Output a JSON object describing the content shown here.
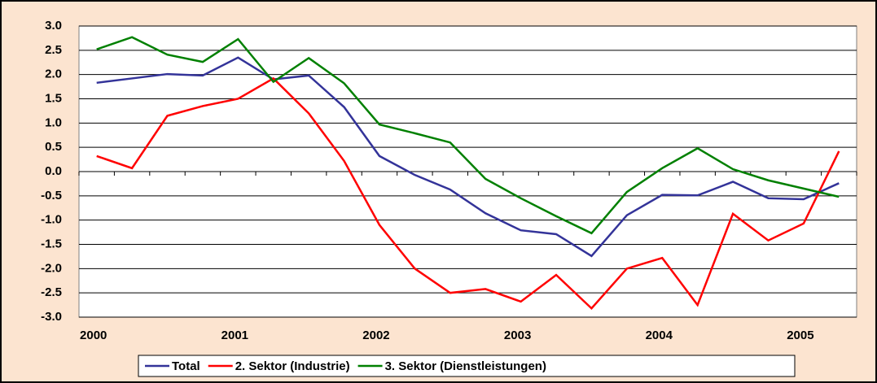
{
  "chart_data": {
    "type": "line",
    "categories": [
      "2000",
      null,
      null,
      null,
      "2001",
      null,
      null,
      null,
      "2002",
      null,
      null,
      null,
      "2003",
      null,
      null,
      null,
      "2004",
      null,
      null,
      null,
      "2005",
      null
    ],
    "series": [
      {
        "name": "Total",
        "color": "#333399",
        "values": [
          1.83,
          1.92,
          2.01,
          1.98,
          2.35,
          1.9,
          1.98,
          1.33,
          0.32,
          -0.07,
          -0.37,
          -0.86,
          -1.21,
          -1.29,
          -1.74,
          -0.9,
          -0.48,
          -0.49,
          -0.21,
          -0.55,
          -0.57,
          -0.24
        ]
      },
      {
        "name": "2. Sektor (Industrie)",
        "color": "#ff0000",
        "values": [
          0.32,
          0.07,
          1.15,
          1.35,
          1.5,
          1.92,
          1.2,
          0.22,
          -1.1,
          -2.0,
          -2.5,
          -2.42,
          -2.68,
          -2.13,
          -2.82,
          -2.0,
          -1.78,
          -2.75,
          -0.87,
          -1.42,
          -1.07,
          0.42
        ]
      },
      {
        "name": "3. Sektor (Dienstleistungen)",
        "color": "#008000",
        "values": [
          2.52,
          2.77,
          2.41,
          2.26,
          2.73,
          1.85,
          2.34,
          1.82,
          0.97,
          0.79,
          0.6,
          -0.15,
          -0.55,
          -0.92,
          -1.27,
          -0.42,
          0.07,
          0.48,
          0.05,
          -0.18,
          -0.35,
          -0.52
        ]
      }
    ],
    "ylim": [
      -3,
      3
    ],
    "yticks": [
      {
        "value": 3,
        "label": "3.0"
      },
      2.5,
      {
        "value": 2,
        "label": "2.0"
      },
      1.5,
      {
        "value": 1,
        "label": "1.0"
      },
      0.5,
      {
        "value": 0,
        "label": "0.0"
      },
      -0.5,
      {
        "value": -1,
        "label": "-1.0"
      },
      -1.5,
      {
        "value": -2,
        "label": "-2.0"
      },
      -2.5,
      {
        "value": -3,
        "label": "-3.0"
      }
    ],
    "grid": true,
    "legend": "bottom"
  }
}
